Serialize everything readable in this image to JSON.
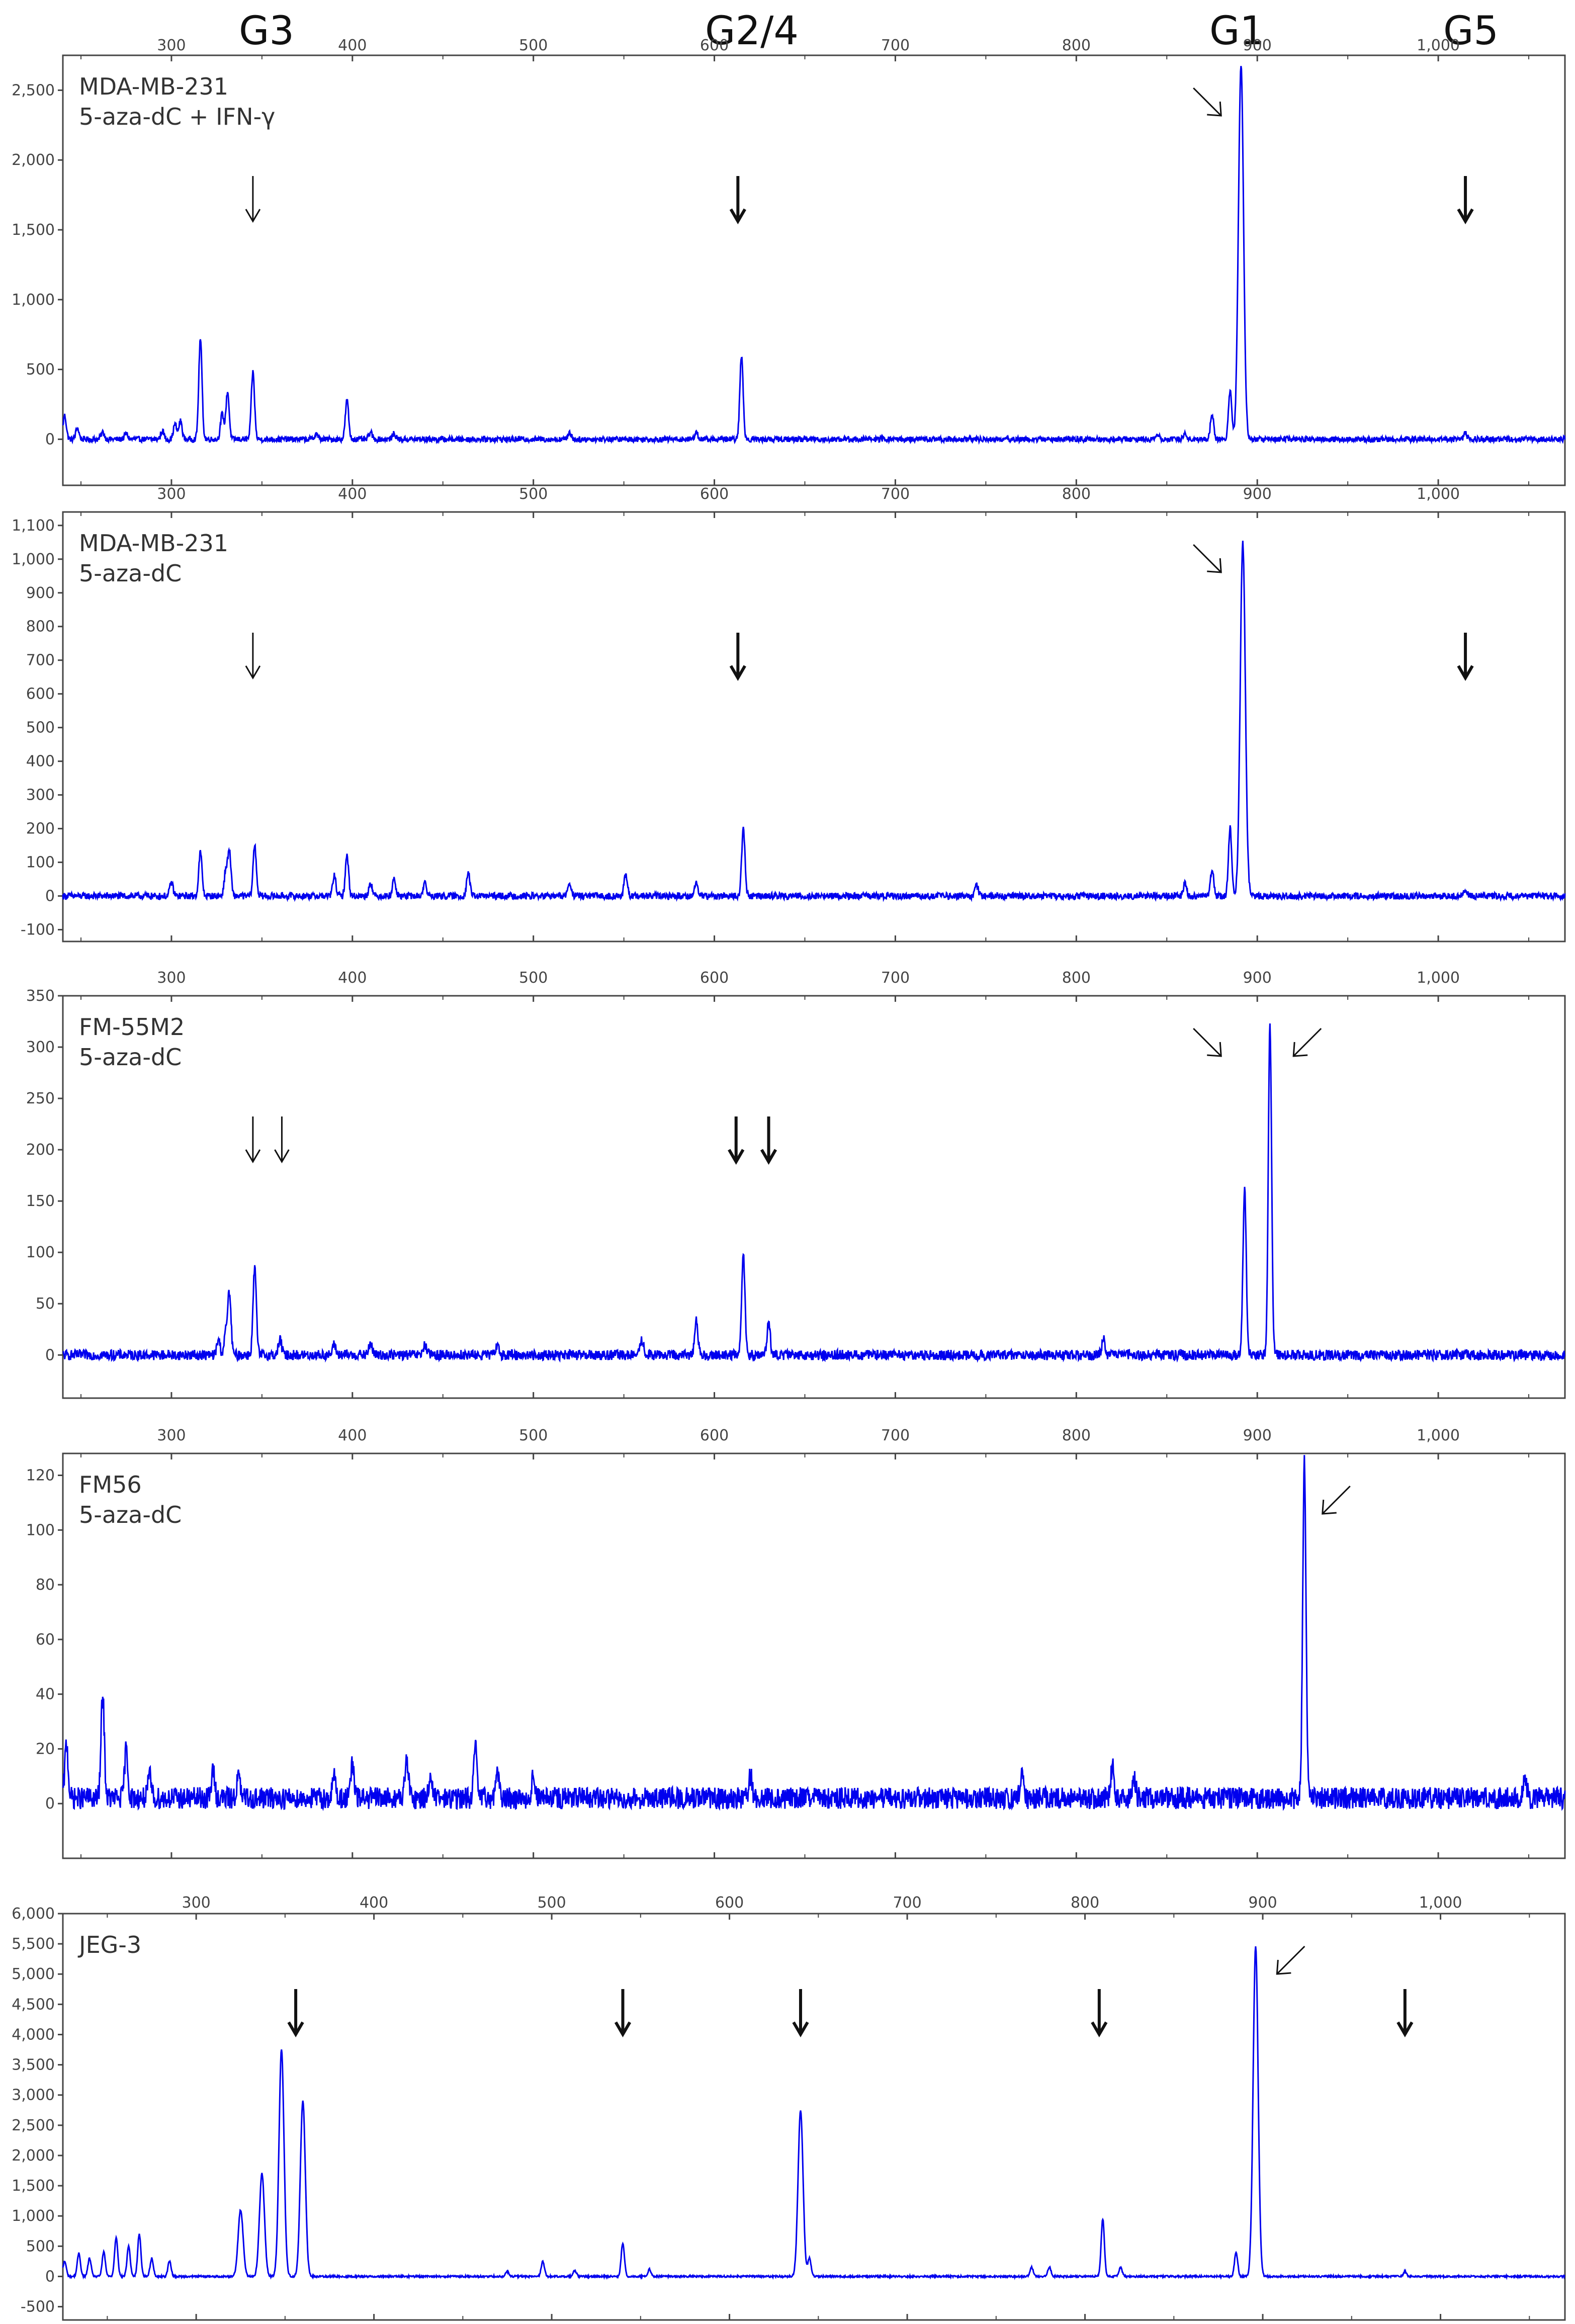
{
  "group_labels": [
    "G3",
    "G2/4",
    "G1",
    "G5"
  ],
  "colors": {
    "trace": "#0000ee",
    "axis": "#444444",
    "arrow": "#111111"
  },
  "chart_data": [
    {
      "type": "line",
      "label": [
        "MDA-MB-231",
        "5-aza-dC + IFN-γ"
      ],
      "x_ticks": [
        300,
        400,
        500,
        600,
        700,
        800,
        900,
        1000
      ],
      "x_tick_labels": [
        "300",
        "400",
        "500",
        "600",
        "700",
        "800",
        "900",
        "1,000"
      ],
      "xlim": [
        240,
        1070
      ],
      "y_ticks": [
        0,
        500,
        1000,
        1500,
        2000,
        2500
      ],
      "y_tick_labels": [
        "0",
        "500",
        "1,000",
        "1,500",
        "2,000",
        "2,500"
      ],
      "ylim": [
        -330,
        2750
      ],
      "noise": 20,
      "baseline": 0,
      "peaks": [
        [
          241,
          170
        ],
        [
          248,
          80
        ],
        [
          262,
          50
        ],
        [
          275,
          40
        ],
        [
          295,
          60
        ],
        [
          302,
          110
        ],
        [
          305,
          130
        ],
        [
          316,
          720
        ],
        [
          328,
          180
        ],
        [
          331,
          340
        ],
        [
          345,
          480
        ],
        [
          380,
          40
        ],
        [
          397,
          280
        ],
        [
          410,
          50
        ],
        [
          423,
          40
        ],
        [
          520,
          50
        ],
        [
          590,
          50
        ],
        [
          615,
          600
        ],
        [
          845,
          40
        ],
        [
          860,
          50
        ],
        [
          875,
          180
        ],
        [
          885,
          350
        ],
        [
          891,
          2680
        ],
        [
          1015,
          40
        ]
      ],
      "arrows": [
        {
          "x": 345,
          "type": "thin",
          "dir": "down"
        },
        {
          "x": 613,
          "type": "bold",
          "dir": "down"
        },
        {
          "x": 1015,
          "type": "bold",
          "dir": "down"
        },
        {
          "x": 880,
          "type": "thin",
          "dir": "diag-left"
        }
      ]
    },
    {
      "type": "line",
      "label": [
        "MDA-MB-231",
        "5-aza-dC"
      ],
      "x_ticks": [
        300,
        400,
        500,
        600,
        700,
        800,
        900,
        1000
      ],
      "x_tick_labels": [
        "300",
        "400",
        "500",
        "600",
        "700",
        "800",
        "900",
        "1,000"
      ],
      "xlim": [
        240,
        1070
      ],
      "y_ticks": [
        -100,
        0,
        100,
        200,
        300,
        400,
        500,
        600,
        700,
        800,
        900,
        1000,
        1100
      ],
      "y_tick_labels": [
        "-100",
        "0",
        "100",
        "200",
        "300",
        "400",
        "500",
        "600",
        "700",
        "800",
        "900",
        "1,000",
        "1,100"
      ],
      "ylim": [
        -135,
        1140
      ],
      "noise": 10,
      "baseline": 0,
      "peaks": [
        [
          300,
          40
        ],
        [
          316,
          130
        ],
        [
          330,
          70
        ],
        [
          332,
          130
        ],
        [
          346,
          150
        ],
        [
          390,
          60
        ],
        [
          397,
          120
        ],
        [
          410,
          40
        ],
        [
          423,
          50
        ],
        [
          440,
          40
        ],
        [
          464,
          70
        ],
        [
          520,
          40
        ],
        [
          551,
          60
        ],
        [
          590,
          40
        ],
        [
          616,
          200
        ],
        [
          745,
          30
        ],
        [
          860,
          40
        ],
        [
          875,
          80
        ],
        [
          885,
          200
        ],
        [
          892,
          1050
        ],
        [
          1015,
          20
        ]
      ],
      "arrows": [
        {
          "x": 345,
          "type": "thin",
          "dir": "down"
        },
        {
          "x": 613,
          "type": "bold",
          "dir": "down"
        },
        {
          "x": 1015,
          "type": "bold",
          "dir": "down"
        },
        {
          "x": 880,
          "type": "thin",
          "dir": "diag-left"
        }
      ]
    },
    {
      "type": "line",
      "label": [
        "FM-55M2",
        "5-aza-dC"
      ],
      "x_ticks": [
        300,
        400,
        500,
        600,
        700,
        800,
        900,
        1000
      ],
      "x_tick_labels": [
        "300",
        "400",
        "500",
        "600",
        "700",
        "800",
        "900",
        "1,000"
      ],
      "xlim": [
        240,
        1070
      ],
      "y_ticks": [
        0,
        50,
        100,
        150,
        200,
        250,
        300,
        350
      ],
      "y_tick_labels": [
        "0",
        "50",
        "100",
        "150",
        "200",
        "250",
        "300",
        "350"
      ],
      "ylim": [
        -42,
        350
      ],
      "noise": 5,
      "baseline": 0,
      "peaks": [
        [
          326,
          15
        ],
        [
          330,
          20
        ],
        [
          332,
          60
        ],
        [
          346,
          85
        ],
        [
          360,
          15
        ],
        [
          390,
          10
        ],
        [
          410,
          12
        ],
        [
          440,
          10
        ],
        [
          480,
          10
        ],
        [
          560,
          15
        ],
        [
          590,
          35
        ],
        [
          616,
          100
        ],
        [
          630,
          30
        ],
        [
          815,
          15
        ],
        [
          893,
          160
        ],
        [
          907,
          320
        ]
      ],
      "arrows": [
        {
          "x": 345,
          "type": "thin",
          "dir": "down"
        },
        {
          "x": 361,
          "type": "thin",
          "dir": "down"
        },
        {
          "x": 612,
          "type": "bold",
          "dir": "down"
        },
        {
          "x": 630,
          "type": "bold",
          "dir": "down"
        },
        {
          "x": 880,
          "type": "thin",
          "dir": "diag-left"
        },
        {
          "x": 920,
          "type": "thin",
          "dir": "diag-right"
        }
      ]
    },
    {
      "type": "line",
      "label": [
        "FM56",
        "5-aza-dC"
      ],
      "x_ticks": [
        300,
        400,
        500,
        600,
        700,
        800,
        900,
        1000
      ],
      "x_tick_labels": [
        "300",
        "400",
        "500",
        "600",
        "700",
        "800",
        "900",
        "1,000"
      ],
      "xlim": [
        240,
        1070
      ],
      "y_ticks": [
        0,
        20,
        40,
        60,
        80,
        100,
        120
      ],
      "y_tick_labels": [
        "0",
        "20",
        "40",
        "60",
        "80",
        "100",
        "120"
      ],
      "ylim": [
        -20,
        128
      ],
      "noise": 4,
      "baseline": 2,
      "peaks": [
        [
          242,
          20
        ],
        [
          262,
          38
        ],
        [
          275,
          18
        ],
        [
          288,
          8
        ],
        [
          323,
          10
        ],
        [
          337,
          8
        ],
        [
          390,
          8
        ],
        [
          400,
          12
        ],
        [
          430,
          15
        ],
        [
          443,
          8
        ],
        [
          468,
          18
        ],
        [
          480,
          10
        ],
        [
          500,
          8
        ],
        [
          620,
          8
        ],
        [
          770,
          10
        ],
        [
          820,
          12
        ],
        [
          832,
          8
        ],
        [
          926,
          124
        ],
        [
          1048,
          8
        ]
      ],
      "arrows": [
        {
          "x": 936,
          "type": "thin",
          "dir": "diag-right"
        }
      ]
    },
    {
      "type": "line",
      "label": [
        "JEG-3"
      ],
      "x_ticks": [
        300,
        400,
        500,
        600,
        700,
        800,
        900,
        1000
      ],
      "x_tick_labels": [
        "300",
        "400",
        "500",
        "600",
        "700",
        "800",
        "900",
        "1,000"
      ],
      "xlim": [
        225,
        1070
      ],
      "y_ticks": [
        -500,
        0,
        500,
        1000,
        1500,
        2000,
        2500,
        3000,
        3500,
        4000,
        4500,
        5000,
        5500,
        6000
      ],
      "y_tick_labels": [
        "-500",
        "0",
        "500",
        "1,000",
        "1,500",
        "2,000",
        "2,500",
        "3,000",
        "3,500",
        "4,000",
        "4,500",
        "5,000",
        "5,500",
        "6,000"
      ],
      "ylim": [
        -720,
        6000
      ],
      "noise": 15,
      "baseline": 0,
      "peaks": [
        [
          226,
          250
        ],
        [
          234,
          380
        ],
        [
          240,
          300
        ],
        [
          248,
          400
        ],
        [
          255,
          650
        ],
        [
          262,
          500
        ],
        [
          268,
          700
        ],
        [
          275,
          300
        ],
        [
          285,
          250
        ],
        [
          325,
          1100
        ],
        [
          337,
          1700
        ],
        [
          348,
          3750
        ],
        [
          360,
          2900
        ],
        [
          475,
          80
        ],
        [
          495,
          250
        ],
        [
          513,
          100
        ],
        [
          540,
          550
        ],
        [
          555,
          120
        ],
        [
          640,
          2750
        ],
        [
          645,
          300
        ],
        [
          770,
          150
        ],
        [
          780,
          150
        ],
        [
          810,
          950
        ],
        [
          820,
          150
        ],
        [
          885,
          400
        ],
        [
          896,
          5450
        ],
        [
          980,
          80
        ]
      ],
      "arrows": [
        {
          "x": 356,
          "type": "bold",
          "dir": "down"
        },
        {
          "x": 540,
          "type": "bold",
          "dir": "down"
        },
        {
          "x": 640,
          "type": "bold",
          "dir": "down"
        },
        {
          "x": 808,
          "type": "bold",
          "dir": "down"
        },
        {
          "x": 980,
          "type": "bold",
          "dir": "down"
        },
        {
          "x": 908,
          "type": "thin",
          "dir": "diag-right"
        }
      ]
    }
  ]
}
